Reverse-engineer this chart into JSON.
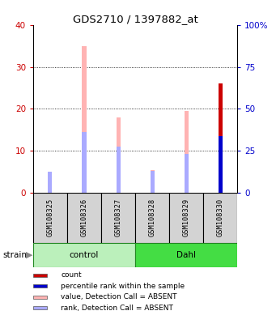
{
  "title": "GDS2710 / 1397882_at",
  "samples": [
    "GSM108325",
    "GSM108326",
    "GSM108327",
    "GSM108328",
    "GSM108329",
    "GSM108330"
  ],
  "groups": [
    "control",
    "control",
    "control",
    "Dahl",
    "Dahl",
    "Dahl"
  ],
  "group_colors": {
    "control": "#bbf0bb",
    "Dahl": "#44dd44"
  },
  "bar_value_absent": [
    3.0,
    35.0,
    18.0,
    5.5,
    19.5,
    0.0
  ],
  "bar_rank_absent": [
    5.0,
    14.5,
    11.0,
    5.3,
    9.3,
    0.0
  ],
  "bar_count": [
    0.0,
    0.0,
    0.0,
    0.0,
    0.0,
    26.0
  ],
  "bar_rank_present": [
    0.0,
    0.0,
    0.0,
    0.0,
    0.0,
    13.5
  ],
  "ylim_left": [
    0,
    40
  ],
  "ylim_right": [
    0,
    100
  ],
  "yticks_left": [
    0,
    10,
    20,
    30,
    40
  ],
  "yticks_right": [
    0,
    25,
    50,
    75,
    100
  ],
  "yticklabels_right": [
    "0",
    "25",
    "50",
    "75",
    "100%"
  ],
  "left_tick_color": "#cc0000",
  "right_tick_color": "#0000cc",
  "color_value_absent": "#ffb3b3",
  "color_rank_absent": "#aaaaff",
  "color_count": "#cc0000",
  "color_rank_present": "#0000cc",
  "bar_width": 0.12,
  "legend_items": [
    {
      "color": "#cc0000",
      "label": "count"
    },
    {
      "color": "#0000cc",
      "label": "percentile rank within the sample"
    },
    {
      "color": "#ffb3b3",
      "label": "value, Detection Call = ABSENT"
    },
    {
      "color": "#aaaaff",
      "label": "rank, Detection Call = ABSENT"
    }
  ],
  "fig_width": 3.41,
  "fig_height": 3.84,
  "fig_dpi": 100
}
